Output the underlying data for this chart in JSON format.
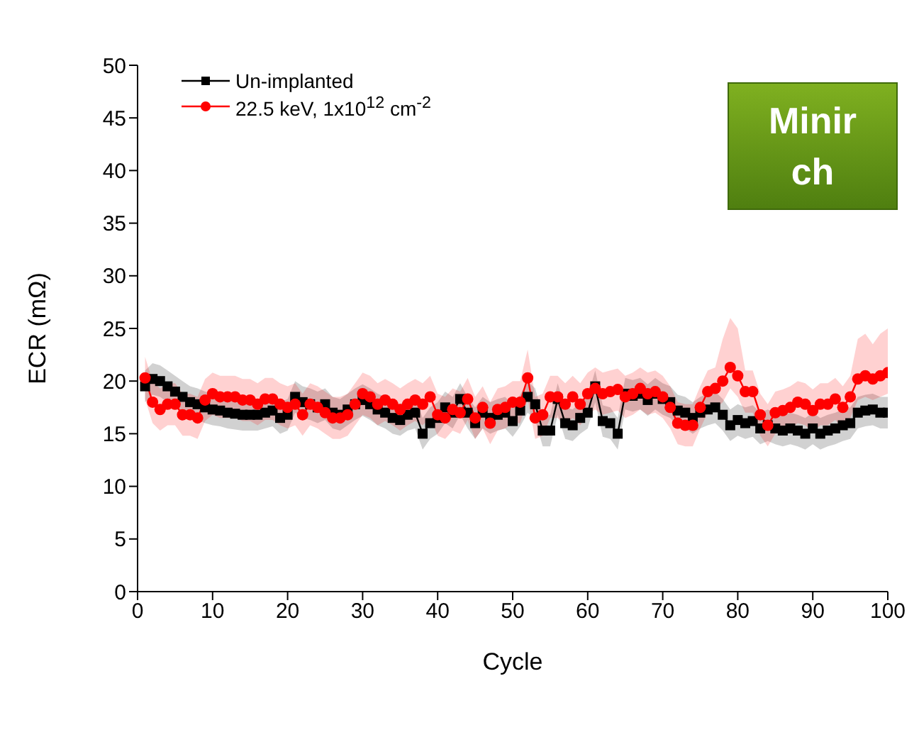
{
  "chart_data": {
    "type": "line",
    "xlabel": "Cycle",
    "ylabel": "ECR (mΩ)",
    "xlim": [
      0,
      100
    ],
    "xticks": [
      0,
      10,
      20,
      30,
      40,
      50,
      60,
      70,
      80,
      90,
      100
    ],
    "ylim": [
      0,
      50
    ],
    "yticks": [
      0,
      5,
      10,
      15,
      20,
      25,
      30,
      35,
      40,
      45,
      50
    ],
    "legend": "top left",
    "line_style": "solid",
    "annotations": [
      "Minir",
      "ch"
    ],
    "x": [
      1,
      2,
      3,
      4,
      5,
      6,
      7,
      8,
      9,
      10,
      11,
      12,
      13,
      14,
      15,
      16,
      17,
      18,
      19,
      20,
      21,
      22,
      23,
      24,
      25,
      26,
      27,
      28,
      29,
      30,
      31,
      32,
      33,
      34,
      35,
      36,
      37,
      38,
      39,
      40,
      41,
      42,
      43,
      44,
      45,
      46,
      47,
      48,
      49,
      50,
      51,
      52,
      53,
      54,
      55,
      56,
      57,
      58,
      59,
      60,
      61,
      62,
      63,
      64,
      65,
      66,
      67,
      68,
      69,
      70,
      71,
      72,
      73,
      74,
      75,
      76,
      77,
      78,
      79,
      80,
      81,
      82,
      83,
      84,
      85,
      86,
      87,
      88,
      89,
      90,
      91,
      92,
      93,
      94,
      95,
      96,
      97,
      98,
      99,
      100
    ],
    "series": [
      {
        "name": "Un-implanted",
        "color": "#000000",
        "marker": "square",
        "values": [
          19.5,
          20.2,
          20,
          19.5,
          19,
          18.5,
          18,
          17.8,
          17.5,
          17.3,
          17.2,
          17,
          16.9,
          16.8,
          16.8,
          16.8,
          17,
          17.2,
          16.5,
          16.8,
          18.5,
          18,
          17.8,
          17.5,
          17.8,
          17,
          16.8,
          17.3,
          17.8,
          18.2,
          17.8,
          17.3,
          17,
          16.5,
          16.3,
          16.8,
          17,
          15,
          16,
          16.5,
          17.5,
          17,
          18.3,
          17,
          16,
          17,
          16.5,
          16.8,
          17,
          16.2,
          17.2,
          18.5,
          17.8,
          15.3,
          15.3,
          18.3,
          16,
          15.8,
          16.5,
          17,
          19.5,
          16.2,
          16,
          15,
          18.8,
          18.6,
          18.8,
          18.2,
          18.8,
          18.3,
          18,
          17.2,
          17,
          16.5,
          17,
          17.3,
          17.5,
          16.8,
          15.8,
          16.3,
          16,
          16.2,
          15.5,
          15.8,
          15.5,
          15.3,
          15.5,
          15.3,
          15,
          15.5,
          15,
          15.3,
          15.5,
          15.8,
          16,
          17,
          17.2,
          17.3,
          17,
          17
        ],
        "lower": [
          18,
          18.7,
          18.5,
          18,
          17.5,
          17,
          16.5,
          16.3,
          16,
          15.8,
          15.7,
          15.5,
          15.4,
          15.3,
          15.3,
          15.3,
          15.5,
          15.7,
          15,
          15.3,
          17,
          16.5,
          16.3,
          16,
          16.3,
          15.5,
          15.3,
          15.8,
          16.3,
          16.7,
          16.3,
          15.8,
          15.5,
          15,
          14.8,
          15.3,
          15.5,
          13.5,
          14.5,
          15,
          16,
          15.5,
          16.8,
          15.5,
          14.5,
          15.5,
          15,
          15.3,
          15.5,
          14.7,
          15.7,
          17,
          16.3,
          13.8,
          13.8,
          16.8,
          14.5,
          14.3,
          15,
          15.5,
          18,
          14.7,
          14.5,
          13.5,
          17.3,
          17.1,
          17.3,
          16.7,
          17.3,
          16.8,
          16.5,
          15.7,
          15.5,
          15,
          15.5,
          15.8,
          16,
          15.3,
          14.3,
          14.8,
          14.5,
          14.7,
          14,
          14.3,
          14,
          13.8,
          14,
          13.8,
          13.5,
          14,
          13.5,
          13.8,
          14,
          14.3,
          14.5,
          15.5,
          15.7,
          15.8,
          15.5,
          15.5
        ],
        "upper": [
          21,
          21.7,
          21.5,
          21,
          20.5,
          20,
          19.5,
          19.3,
          19,
          18.8,
          18.7,
          18.5,
          18.4,
          18.3,
          18.3,
          18.3,
          18.5,
          18.7,
          18,
          18.3,
          20,
          19.5,
          19.3,
          19,
          19.3,
          18.5,
          18.3,
          18.8,
          19.3,
          19.7,
          19.3,
          18.8,
          18.5,
          18,
          17.8,
          18.3,
          18.5,
          16.5,
          17.5,
          18,
          19,
          18.5,
          19.8,
          18.5,
          17.5,
          18.5,
          18,
          18.3,
          18.5,
          17.7,
          18.7,
          20,
          19.3,
          16.8,
          16.8,
          19.8,
          17.5,
          17.3,
          18,
          18.5,
          21,
          17.7,
          17.5,
          16.5,
          20.3,
          20.1,
          20.3,
          19.7,
          20.3,
          19.8,
          19.5,
          18.7,
          18.5,
          18,
          18.5,
          18.8,
          19,
          18.3,
          17.3,
          17.8,
          17.5,
          17.7,
          17,
          17.3,
          17,
          16.8,
          17,
          16.8,
          16.5,
          17,
          16.5,
          16.8,
          17,
          17.3,
          17.5,
          18.5,
          18.7,
          18.8,
          18.5,
          18.5
        ]
      },
      {
        "name": "22.5 keV, 1x10$^{12}$ cm$^{-2}$",
        "color": "#ff0000",
        "marker": "circle",
        "values": [
          20.3,
          18,
          17.3,
          17.8,
          17.8,
          16.8,
          16.8,
          16.5,
          18.2,
          18.8,
          18.5,
          18.5,
          18.5,
          18.2,
          18.2,
          17.8,
          18.3,
          18.3,
          17.8,
          17.5,
          17.8,
          16.8,
          17.8,
          17.5,
          17,
          16.5,
          16.5,
          16.8,
          17.8,
          18.8,
          18.5,
          17.8,
          18.2,
          17.8,
          17.3,
          17.8,
          18.2,
          17.8,
          18.5,
          16.8,
          16.5,
          17.3,
          17,
          18.3,
          16.5,
          17.5,
          16,
          17.3,
          17.5,
          18,
          18,
          20.3,
          16.5,
          16.8,
          18.5,
          18.5,
          17.8,
          18.5,
          17.8,
          18.8,
          19.3,
          18.8,
          19,
          19.2,
          18.5,
          18.8,
          19.3,
          18.8,
          19,
          18.5,
          17.5,
          16,
          15.8,
          15.8,
          17.5,
          19,
          19.3,
          20,
          21.3,
          20.5,
          19,
          19,
          16.8,
          15.8,
          17,
          17.2,
          17.5,
          18,
          17.8,
          17.2,
          17.8,
          17.8,
          18.3,
          17.5,
          18.5,
          20.2,
          20.5,
          20.2,
          20.5,
          20.8
        ],
        "lower": [
          18.3,
          16,
          15.3,
          15.8,
          15.8,
          14.8,
          14.8,
          14.5,
          16.2,
          16.8,
          16.5,
          16.5,
          16.5,
          16.2,
          16.2,
          15.8,
          16.3,
          16.3,
          15.8,
          15.5,
          15.8,
          14.8,
          15.8,
          15.5,
          15,
          14.5,
          14.5,
          14.8,
          15.8,
          16.8,
          16.5,
          15.8,
          16.2,
          15.8,
          15.3,
          15.8,
          16.2,
          15.8,
          16.5,
          14.8,
          14.5,
          15.3,
          15,
          16.3,
          14.5,
          15.5,
          14,
          15.3,
          15.5,
          16,
          16,
          18.3,
          14.5,
          14.8,
          16.5,
          16.5,
          15.8,
          16.5,
          15.8,
          16.8,
          17.3,
          16.8,
          17,
          17.2,
          16.5,
          16.8,
          17.3,
          16.8,
          17,
          16.5,
          15.5,
          14,
          13.8,
          13.8,
          15.5,
          17,
          17.3,
          18,
          19.3,
          18.5,
          17,
          17,
          14.8,
          13.8,
          15,
          15.2,
          15.5,
          16,
          15.8,
          15.2,
          15.8,
          15.8,
          16.3,
          15.5,
          16.5,
          18.2,
          18.5,
          18.2,
          18.5,
          18.8
        ],
        "upper": [
          22.3,
          20,
          19.3,
          19.8,
          19.8,
          18.8,
          18.8,
          18.5,
          20.2,
          20.8,
          20.5,
          20.5,
          20.5,
          20.2,
          20.2,
          19.8,
          20.3,
          20.3,
          19.8,
          19.5,
          19.8,
          18.8,
          19.8,
          19.5,
          19,
          18.5,
          18.5,
          18.8,
          19.8,
          20.8,
          20.5,
          19.8,
          20.2,
          19.8,
          19.3,
          19.8,
          20.2,
          19.8,
          20.5,
          18.8,
          18.5,
          19.3,
          19,
          20.3,
          18.5,
          19.5,
          18,
          19.3,
          19.5,
          20,
          20,
          23,
          18.5,
          18.8,
          20.5,
          20.5,
          19.8,
          20.5,
          19.8,
          20.8,
          21.3,
          20.8,
          21,
          21.2,
          20.5,
          20.8,
          21.3,
          20.8,
          21,
          20.5,
          19.5,
          18,
          17.8,
          17.8,
          19.5,
          21,
          21.3,
          24,
          26,
          25,
          21,
          21,
          18.8,
          17.8,
          19,
          19.2,
          19.5,
          20,
          19.8,
          19.2,
          19.8,
          19.8,
          20.3,
          19.5,
          20.5,
          24,
          24.5,
          23.5,
          24.5,
          25
        ]
      }
    ]
  }
}
